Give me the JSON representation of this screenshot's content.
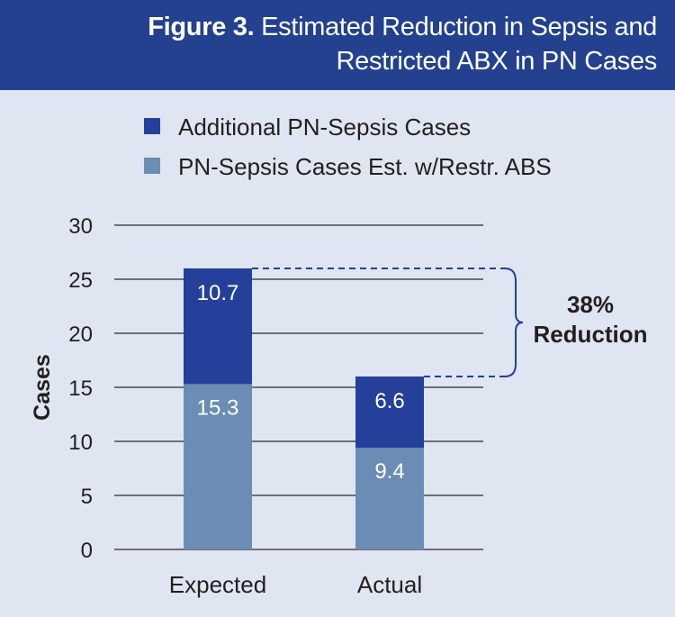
{
  "header": {
    "figure_label": "Figure 3.",
    "title_line1": "Estimated Reduction in Sepsis and",
    "title_line2": "Restricted ABX in PN Cases"
  },
  "colors": {
    "header_bg": "#23418f",
    "background": "#dfe5f1",
    "additional": "#24409a",
    "estimated": "#6b8db5"
  },
  "chart_data": {
    "type": "bar",
    "stacked": true,
    "categories": [
      "Expected",
      "Actual"
    ],
    "series": [
      {
        "name": "PN-Sepsis Cases Est. w/Restr. ABS",
        "values": [
          15.3,
          9.4
        ],
        "color": "#6b8db5"
      },
      {
        "name": "Additional PN-Sepsis Cases",
        "values": [
          10.7,
          6.6
        ],
        "color": "#24409a"
      }
    ],
    "legend_order": [
      1,
      0
    ],
    "legend_position": "top-left",
    "ylabel": "Cases",
    "ylim": [
      0,
      30
    ],
    "yticks": [
      0,
      5,
      10,
      15,
      20,
      25,
      30
    ],
    "grid": true,
    "annotation": {
      "line1": "38%",
      "line2": "Reduction"
    }
  }
}
